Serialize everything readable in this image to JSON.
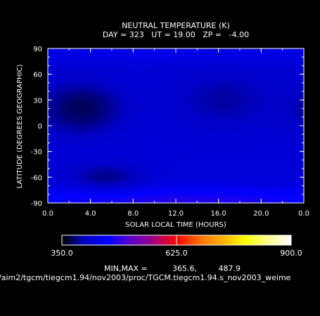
{
  "chart_data": {
    "type": "heatmap",
    "title": "NEUTRAL TEMPERATURE (K)",
    "subtitle": "DAY = 323   UT = 19.00   ZP =   -4.00",
    "xlabel": "SOLAR LOCAL TIME (HOURS)",
    "ylabel": "LATITUDE (DEGREES GEOGRAPHIC)",
    "x_ticks": [
      "0.0",
      "4.0",
      "8.0",
      "12.0",
      "16.0",
      "20.0",
      "0.0"
    ],
    "y_ticks": [
      "90",
      "60",
      "30",
      "0",
      "-30",
      "-60",
      "-90"
    ],
    "xlim": [
      0,
      24
    ],
    "ylim": [
      -90,
      90
    ],
    "colorbar": {
      "min_label": "350.0",
      "mid_label": "625.0",
      "max_label": "900.0",
      "range": [
        350,
        900
      ],
      "stops": [
        "#000000",
        "#0000c8",
        "#0000ff",
        "#5a00c8",
        "#a00080",
        "#ff0000",
        "#ff7000",
        "#ffb000",
        "#ffff00",
        "#ffff90",
        "#ffffff"
      ]
    },
    "minmax_label": "MIN,MAX =",
    "min_value": "365.6,",
    "max_value": "487.9",
    "source_path": "/aim2/tgcm/tiegcm1.94/nov2003/proc/TGCM.tiegcm1.94.s_nov2003_weime",
    "field": {
      "background": 420,
      "features": [
        {
          "x": 3.2,
          "lat": 20,
          "sx": 2.8,
          "sy": 22,
          "value": 375
        },
        {
          "x": 16.5,
          "lat": 30,
          "sx": 3.5,
          "sy": 25,
          "value": 395
        },
        {
          "x": 5.5,
          "lat": -62,
          "sx": 2.5,
          "sy": 12,
          "value": 385
        },
        {
          "x": 12,
          "lat": -88,
          "sx": 14,
          "sy": 12,
          "value": 480
        },
        {
          "x": 12,
          "lat": 85,
          "sx": 14,
          "sy": 8,
          "value": 440
        }
      ]
    }
  }
}
